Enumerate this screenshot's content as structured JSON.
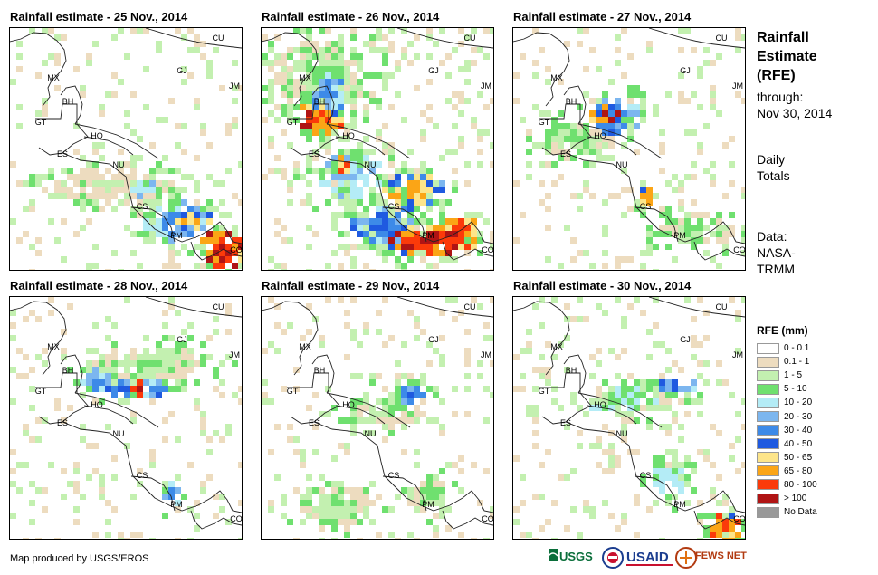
{
  "panels": [
    {
      "title": "Rainfall estimate - 25 Nov., 2014"
    },
    {
      "title": "Rainfall estimate - 26 Nov., 2014"
    },
    {
      "title": "Rainfall estimate - 27 Nov., 2014"
    },
    {
      "title": "Rainfall estimate - 28 Nov., 2014"
    },
    {
      "title": "Rainfall estimate - 29 Nov., 2014"
    },
    {
      "title": "Rainfall estimate - 30 Nov., 2014"
    }
  ],
  "country_labels": [
    "CU",
    "MX",
    "GJ",
    "JM",
    "BH",
    "GT",
    "HO",
    "ES",
    "NU",
    "CS",
    "PM",
    "CO"
  ],
  "sidebar": {
    "title_lines": [
      "Rainfall",
      "Estimate",
      "(RFE)"
    ],
    "through_label": "through:",
    "through_date": "Nov 30, 2014",
    "totals_lines": [
      "Daily",
      "Totals"
    ],
    "data_lines": [
      "Data:",
      "NASA-",
      "TRMM"
    ]
  },
  "legend": {
    "title": "RFE (mm)",
    "items": [
      {
        "label": "0 - 0.1",
        "color": "#ffffff"
      },
      {
        "label": "0.1 - 1",
        "color": "#eddcbf"
      },
      {
        "label": "1 - 5",
        "color": "#c3f0b0"
      },
      {
        "label": "5 - 10",
        "color": "#6fe06f"
      },
      {
        "label": "10 - 20",
        "color": "#b4ecf6"
      },
      {
        "label": "20 - 30",
        "color": "#7cb6ef"
      },
      {
        "label": "30 - 40",
        "color": "#3d8ae8"
      },
      {
        "label": "40 - 50",
        "color": "#1f5ae0"
      },
      {
        "label": "50 - 65",
        "color": "#fde58a"
      },
      {
        "label": "65 - 80",
        "color": "#fba516"
      },
      {
        "label": "80 - 100",
        "color": "#fb3a0a"
      },
      {
        "label": "> 100",
        "color": "#b01414"
      },
      {
        "label": "No Data",
        "color": "#999999"
      }
    ]
  },
  "footer": {
    "credit": "Map produced by USGS/EROS",
    "logos": [
      "USGS",
      "USAID",
      "FEWS NET"
    ]
  }
}
